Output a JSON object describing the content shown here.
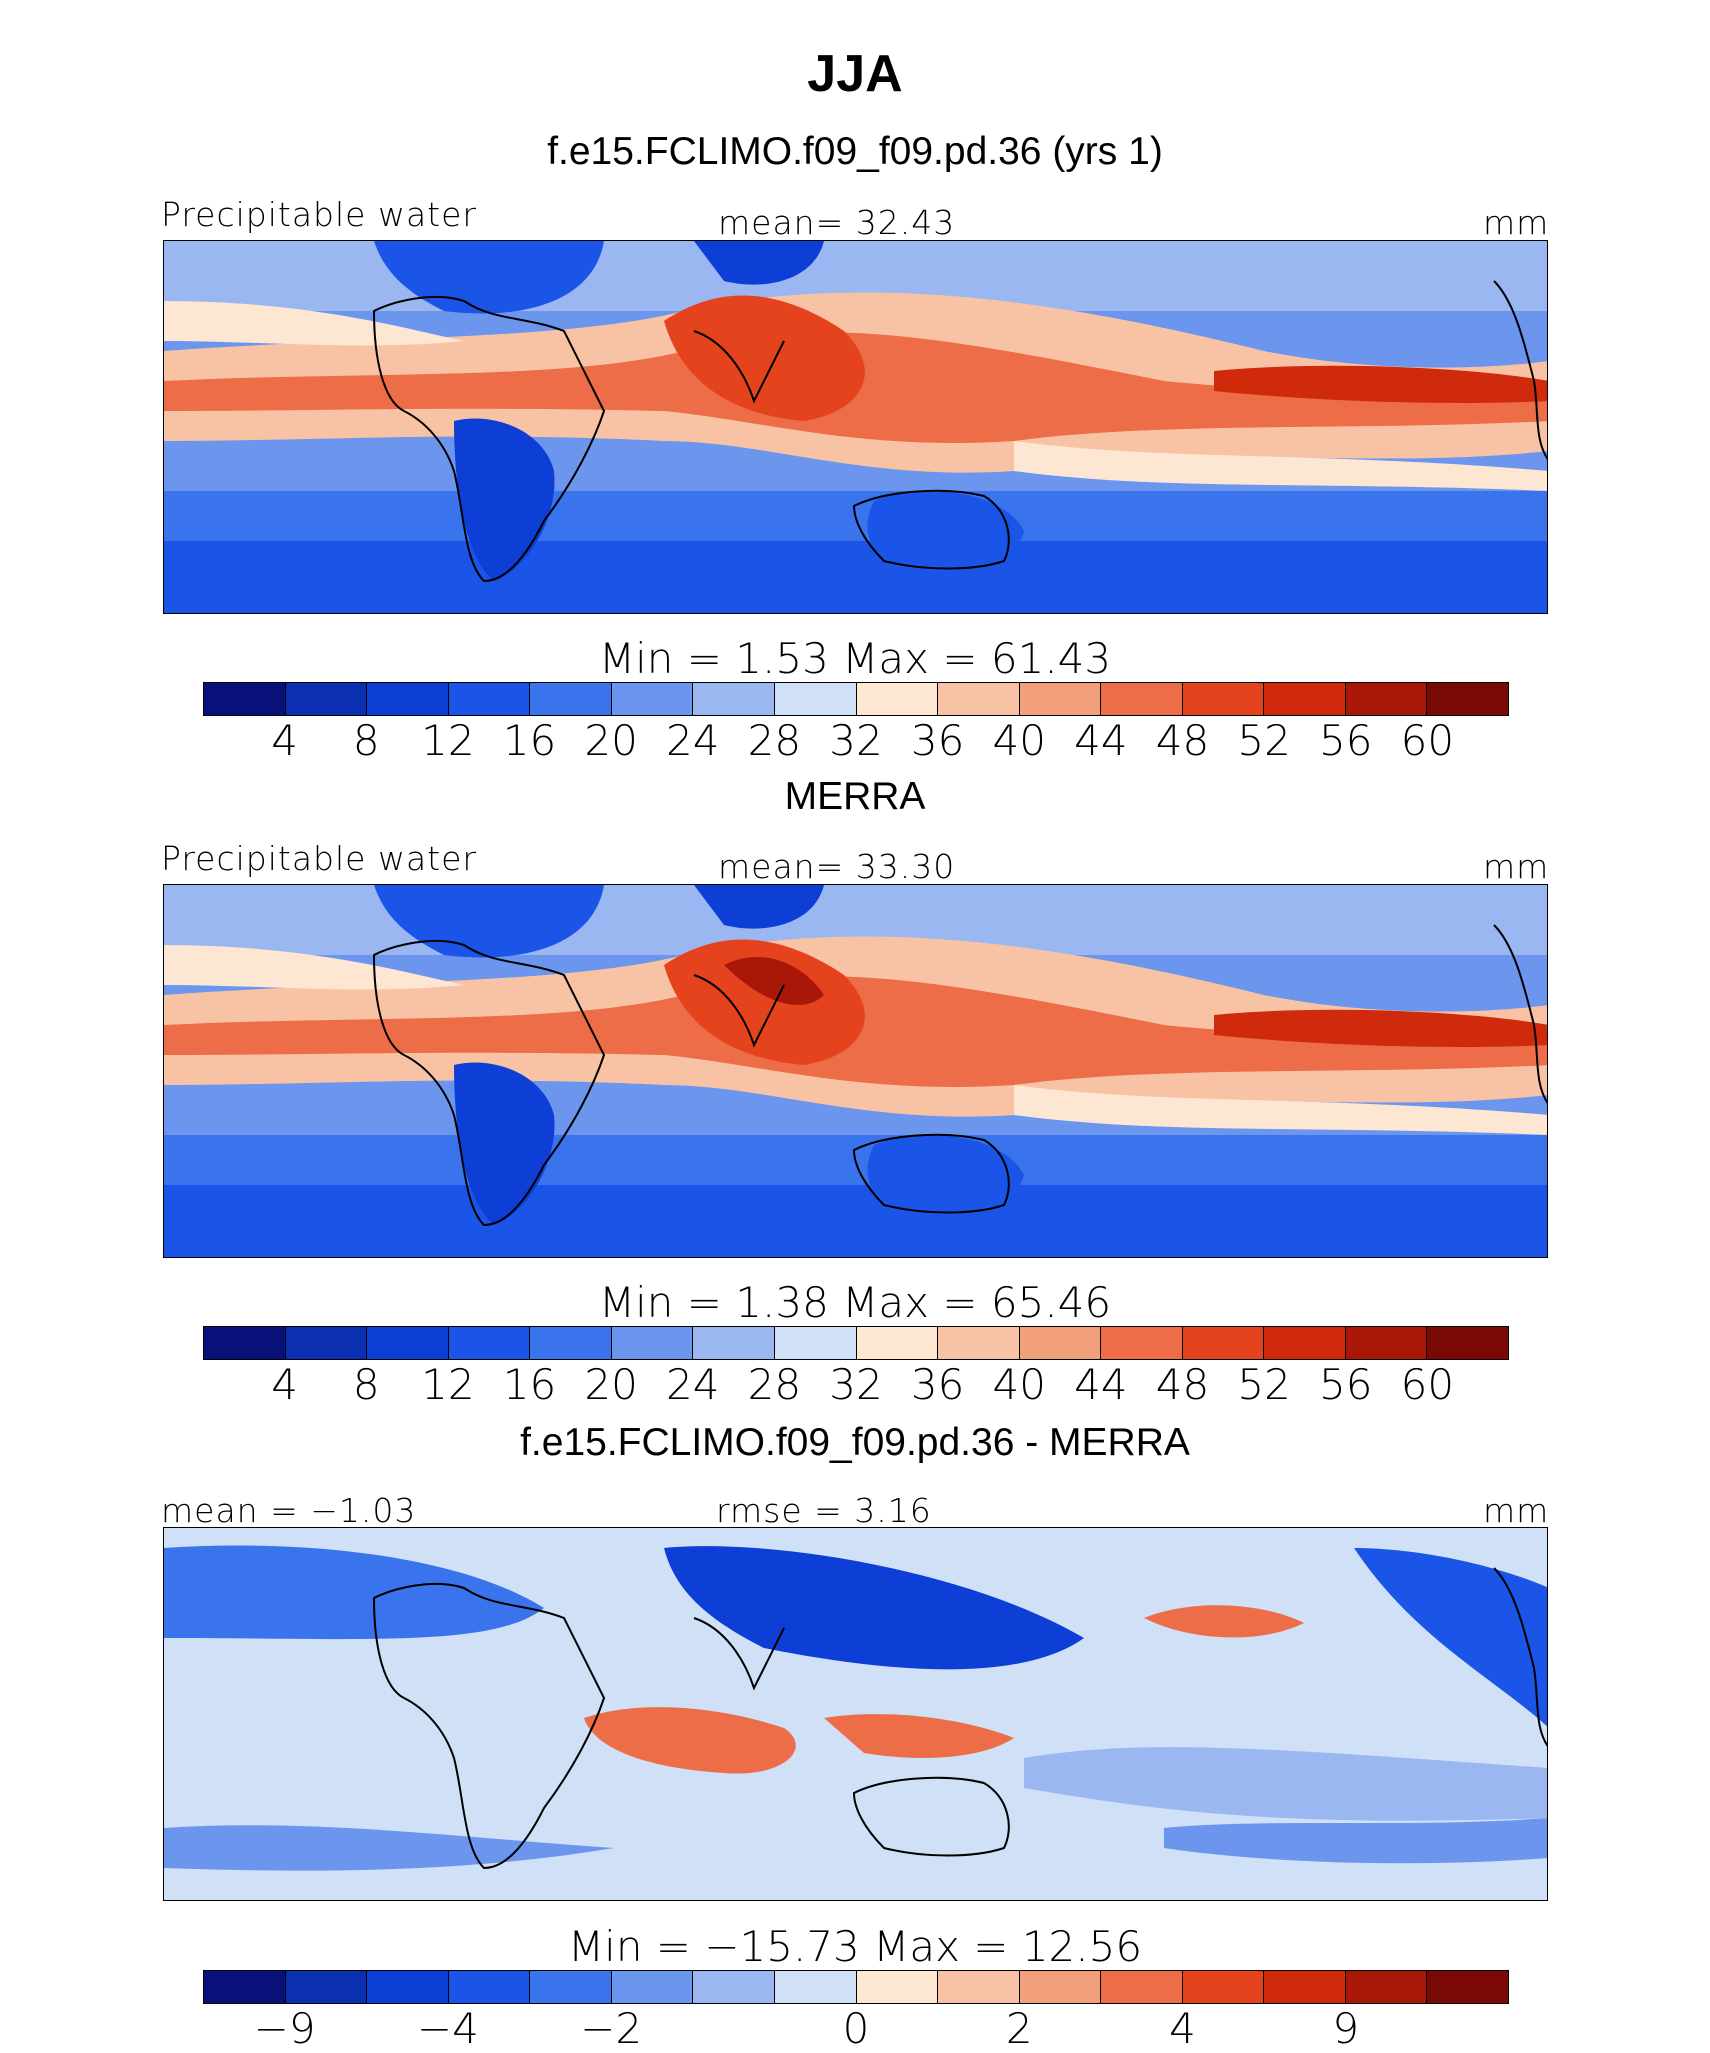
{
  "title": "JJA",
  "panels": [
    {
      "title": "f.e15.FCLIMO.f09_f09.pd.36 (yrs 1)",
      "left_label": "Precipitable water",
      "center_label": "mean=   32.43",
      "right_label": "mm",
      "minmax": "Min  =     1.53  Max  =   61.43",
      "colorbar_labels": [
        "4",
        "8",
        "12",
        "16",
        "20",
        "24",
        "28",
        "32",
        "36",
        "40",
        "44",
        "48",
        "52",
        "56",
        "60"
      ],
      "kind": "model"
    },
    {
      "title": "MERRA",
      "left_label": "Precipitable water",
      "center_label": "mean=   33.30",
      "right_label": "mm",
      "minmax": "Min  =     1.38  Max  =   65.46",
      "colorbar_labels": [
        "4",
        "8",
        "12",
        "16",
        "20",
        "24",
        "28",
        "32",
        "36",
        "40",
        "44",
        "48",
        "52",
        "56",
        "60"
      ],
      "kind": "obs"
    },
    {
      "title": "f.e15.FCLIMO.f09_f09.pd.36 - MERRA",
      "left_label": "mean  =   −1.03",
      "center_label": "rmse  =     3.16",
      "right_label": "mm",
      "minmax": "Min  =  −15.73  Max  =   12.56",
      "colorbar_labels": [
        "−9",
        "−4",
        "−2",
        "0",
        "2",
        "4",
        "9"
      ],
      "kind": "diff"
    }
  ],
  "colors": {
    "full_palette": [
      "#08107a",
      "#0a2fb0",
      "#0d3fd6",
      "#1a55e8",
      "#3a74ec",
      "#6c96ee",
      "#9ab7f1",
      "#cfe0f7",
      "#fde6d2",
      "#f8c3a5",
      "#f29f7c",
      "#ec6d47",
      "#e5431d",
      "#cf2a0c",
      "#a81708",
      "#7a0805"
    ],
    "diff_palette": [
      "#08107a",
      "#0d3fd6",
      "#1a55e8",
      "#3a74ec",
      "#6c96ee",
      "#9ab7f1",
      "#cfe0f7",
      "#fde6d2",
      "#f8c3a5",
      "#f29f7c",
      "#ec6d47",
      "#e5431d",
      "#cf2a0c",
      "#a81708",
      "#7a0805"
    ]
  }
}
